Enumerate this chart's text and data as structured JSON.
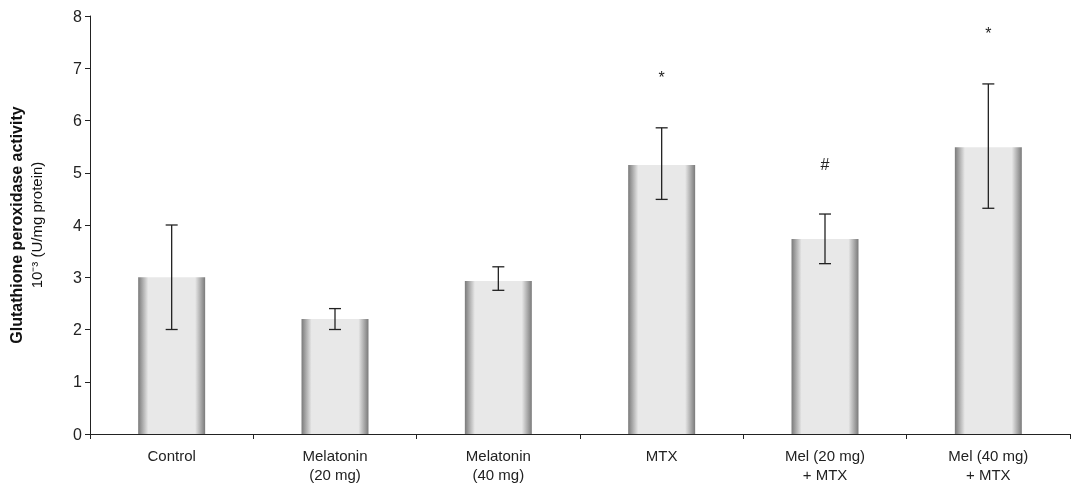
{
  "chart_data": {
    "type": "bar",
    "ylabel": "Glutathione peroxidase activity\n10⁻³ (U/mg protein)",
    "categories": [
      "Control",
      "Melatonin\n(20 mg)",
      "Melatonin\n(40 mg)",
      "MTX",
      "Mel (20 mg)\n+ MTX",
      "Mel (40 mg)\n+ MTX"
    ],
    "values": [
      3.0,
      2.2,
      2.93,
      5.15,
      3.73,
      5.49
    ],
    "errors": [
      [
        2.0,
        4.0
      ],
      [
        2.0,
        2.4
      ],
      [
        2.75,
        3.2
      ],
      [
        4.49,
        5.86
      ],
      [
        3.26,
        4.21
      ],
      [
        4.32,
        6.7
      ]
    ],
    "color": "#e8e8e8",
    "ylim": [
      0,
      8
    ],
    "yticks": [
      0,
      1,
      2,
      3,
      4,
      5,
      6,
      7,
      8
    ],
    "annotations": [
      "*",
      "#",
      "*"
    ]
  }
}
